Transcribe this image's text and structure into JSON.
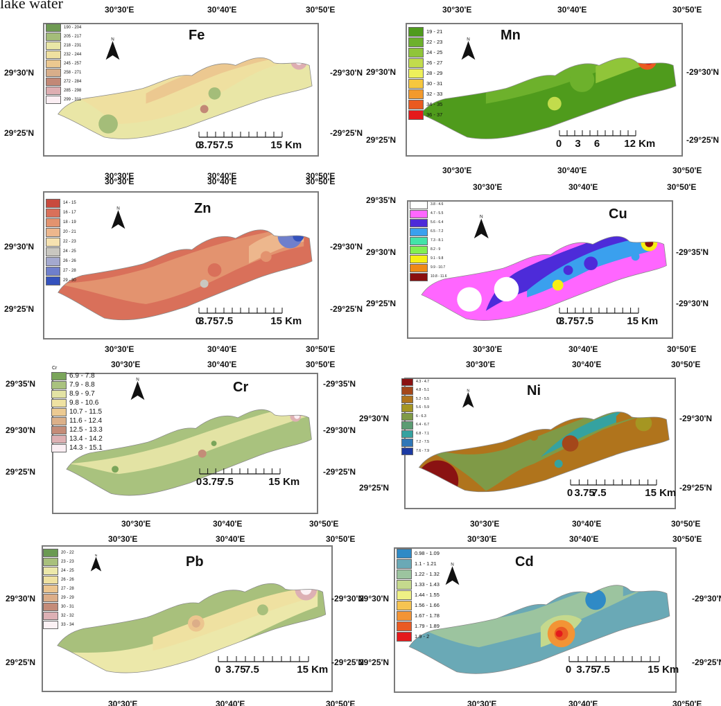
{
  "header_text": "lake water",
  "maps": [
    {
      "id": "fe",
      "element": "Fe",
      "legend": [
        "190 - 204",
        "205 - 217",
        "218 - 231",
        "232 - 244",
        "245 - 257",
        "258 - 271",
        "272 - 284",
        "285 - 298",
        "299 - 311"
      ],
      "colors": [
        "#6e9a52",
        "#a4bd79",
        "#e9e6a6",
        "#efe0a0",
        "#ecc890",
        "#d8ae8a",
        "#c28876",
        "#deaeb2",
        "#fbeef3"
      ],
      "lon_labels": [
        "30°30'E",
        "30°40'E",
        "30°50'E"
      ],
      "lat_labels": [
        "29°30'N",
        "29°25'N"
      ],
      "scale": [
        "0",
        "3.757.5",
        "15 Km"
      ]
    },
    {
      "id": "mn",
      "element": "Mn",
      "legend": [
        "19 - 21",
        "22 - 23",
        "24 - 25",
        "26 - 27",
        "28 - 29",
        "30 - 31",
        "32 - 33",
        "34 - 35",
        "36 - 37"
      ],
      "colors": [
        "#4f9b1c",
        "#6db12c",
        "#90c539",
        "#c2dc4c",
        "#eef05a",
        "#f6c73e",
        "#f39a2c",
        "#ea5a20",
        "#e41a1c"
      ],
      "lon_labels": [
        "30°30'E",
        "30°40'E",
        "30°50'E"
      ],
      "lat_labels": [
        "29°30'N",
        "29°25'N"
      ],
      "scale": [
        "0",
        "3",
        "6",
        "12 Km"
      ]
    },
    {
      "id": "zn",
      "element": "Zn",
      "legend": [
        "14 - 15",
        "16 - 17",
        "18 - 19",
        "20 - 21",
        "22 - 23",
        "24 - 25",
        "26 - 26",
        "27 - 28",
        "29 - 30"
      ],
      "colors": [
        "#c84a3e",
        "#d9705a",
        "#e3936f",
        "#edb78d",
        "#f6e2b0",
        "#c9c7c0",
        "#a4a9cf",
        "#6f7fcc",
        "#3452bd"
      ],
      "lon_labels": [
        "30°30'E",
        "30°40'E",
        "30°50'E"
      ],
      "lat_labels": [
        "29°30'N",
        "29°25'N"
      ],
      "scale": [
        "0",
        "3.757.5",
        "15 Km"
      ]
    },
    {
      "id": "cu",
      "element": "Cu",
      "legend": [
        "3.8 - 4.6",
        "4.7 - 5.5",
        "5.6 - 6.4",
        "6.5 - 7.2",
        "7.3 - 8.1",
        "8.2 - 9",
        "9.1 - 9.8",
        "9.9 - 10.7",
        "10.8 - 11.6"
      ],
      "colors": [
        "#ffffff",
        "#ff66ff",
        "#4d2bd9",
        "#3aa0ee",
        "#43e3a8",
        "#82ef52",
        "#f6ef14",
        "#ef8a16",
        "#8a0f0f"
      ],
      "lon_labels": [
        "30°30'E",
        "30°40'E",
        "30°50'E"
      ],
      "lat_labels": [
        "29°35'N",
        "29°30'N",
        "29°25'N"
      ],
      "scale": [
        "0",
        "3.757.5",
        "15 Km"
      ]
    },
    {
      "id": "cr",
      "element": "Cr",
      "legend_header": "Cr",
      "legend": [
        "6.9 - 7.8",
        "7.9 - 8.8",
        "8.9 - 9.7",
        "9.8 - 10.6",
        "10.7 - 11.5",
        "11.6 - 12.4",
        "12.5 - 13.3",
        "13.4 - 14.2",
        "14.3 - 15.1"
      ],
      "colors": [
        "#7aa55a",
        "#a9c27e",
        "#e3e3a4",
        "#efe2a2",
        "#ecca92",
        "#dcb089",
        "#c48c78",
        "#deb0b3",
        "#fbeef3"
      ],
      "lon_labels": [
        "30°30'E",
        "30°40'E",
        "30°50'E"
      ],
      "lat_labels": [
        "29°35'N",
        "29°30'N",
        "29°25'N"
      ],
      "scale": [
        "0",
        "3.75",
        "7.5",
        "15 Km"
      ]
    },
    {
      "id": "ni",
      "element": "Ni",
      "legend": [
        "4.3 - 4.7",
        "4.8 - 5.1",
        "5.2 - 5.5",
        "5.6 - 5.9",
        "6 - 6.3",
        "6.4 - 6.7",
        "6.8 - 7.1",
        "7.2 - 7.5",
        "7.6 - 7.9"
      ],
      "colors": [
        "#8a1212",
        "#a4471a",
        "#b0741c",
        "#a59622",
        "#7f9a47",
        "#5b9c73",
        "#35a2a0",
        "#2f77b8",
        "#1c3aa3"
      ],
      "lon_labels": [
        "30°30'E",
        "30°40'E",
        "30°50'E"
      ],
      "lat_labels": [
        "29°30'N",
        "29°25'N"
      ],
      "scale": [
        "0",
        "3.75",
        "7.5",
        "15 Km"
      ]
    },
    {
      "id": "pb",
      "element": "Pb",
      "legend": [
        "20 - 22",
        "23 - 23",
        "24 - 25",
        "26 - 26",
        "27 - 28",
        "29 - 29",
        "30 - 31",
        "32 - 32",
        "33 - 34"
      ],
      "colors": [
        "#6a9a52",
        "#a8c07c",
        "#ece8aa",
        "#efe1a1",
        "#ecc58f",
        "#dcad88",
        "#c48b78",
        "#ddb0b4",
        "#fbf1f4"
      ],
      "lon_labels": [
        "30°30'E",
        "30°40'E",
        "30°50'E"
      ],
      "lat_labels": [
        "29°30'N",
        "29°25'N"
      ],
      "scale": [
        "0",
        "3.75",
        "7.5",
        "15 Km"
      ]
    },
    {
      "id": "cd",
      "element": "Cd",
      "legend": [
        "0.98 - 1.09",
        "1.1 - 1.21",
        "1.22 - 1.32",
        "1.33 - 1.43",
        "1.44 - 1.55",
        "1.56 - 1.66",
        "1.67 - 1.78",
        "1.79 - 1.89",
        "1.9 - 2"
      ],
      "colors": [
        "#2f8ac6",
        "#6aa9b6",
        "#9cc49f",
        "#c5d98d",
        "#eef085",
        "#f6c451",
        "#f39435",
        "#ea5a23",
        "#e41a1c"
      ],
      "lon_labels": [
        "30°30'E",
        "30°40'E",
        "30°50'E"
      ],
      "lat_labels": [
        "29°30'N",
        "29°25'N"
      ],
      "scale": [
        "0",
        "3.75",
        "7.5",
        "15 Km"
      ]
    }
  ]
}
